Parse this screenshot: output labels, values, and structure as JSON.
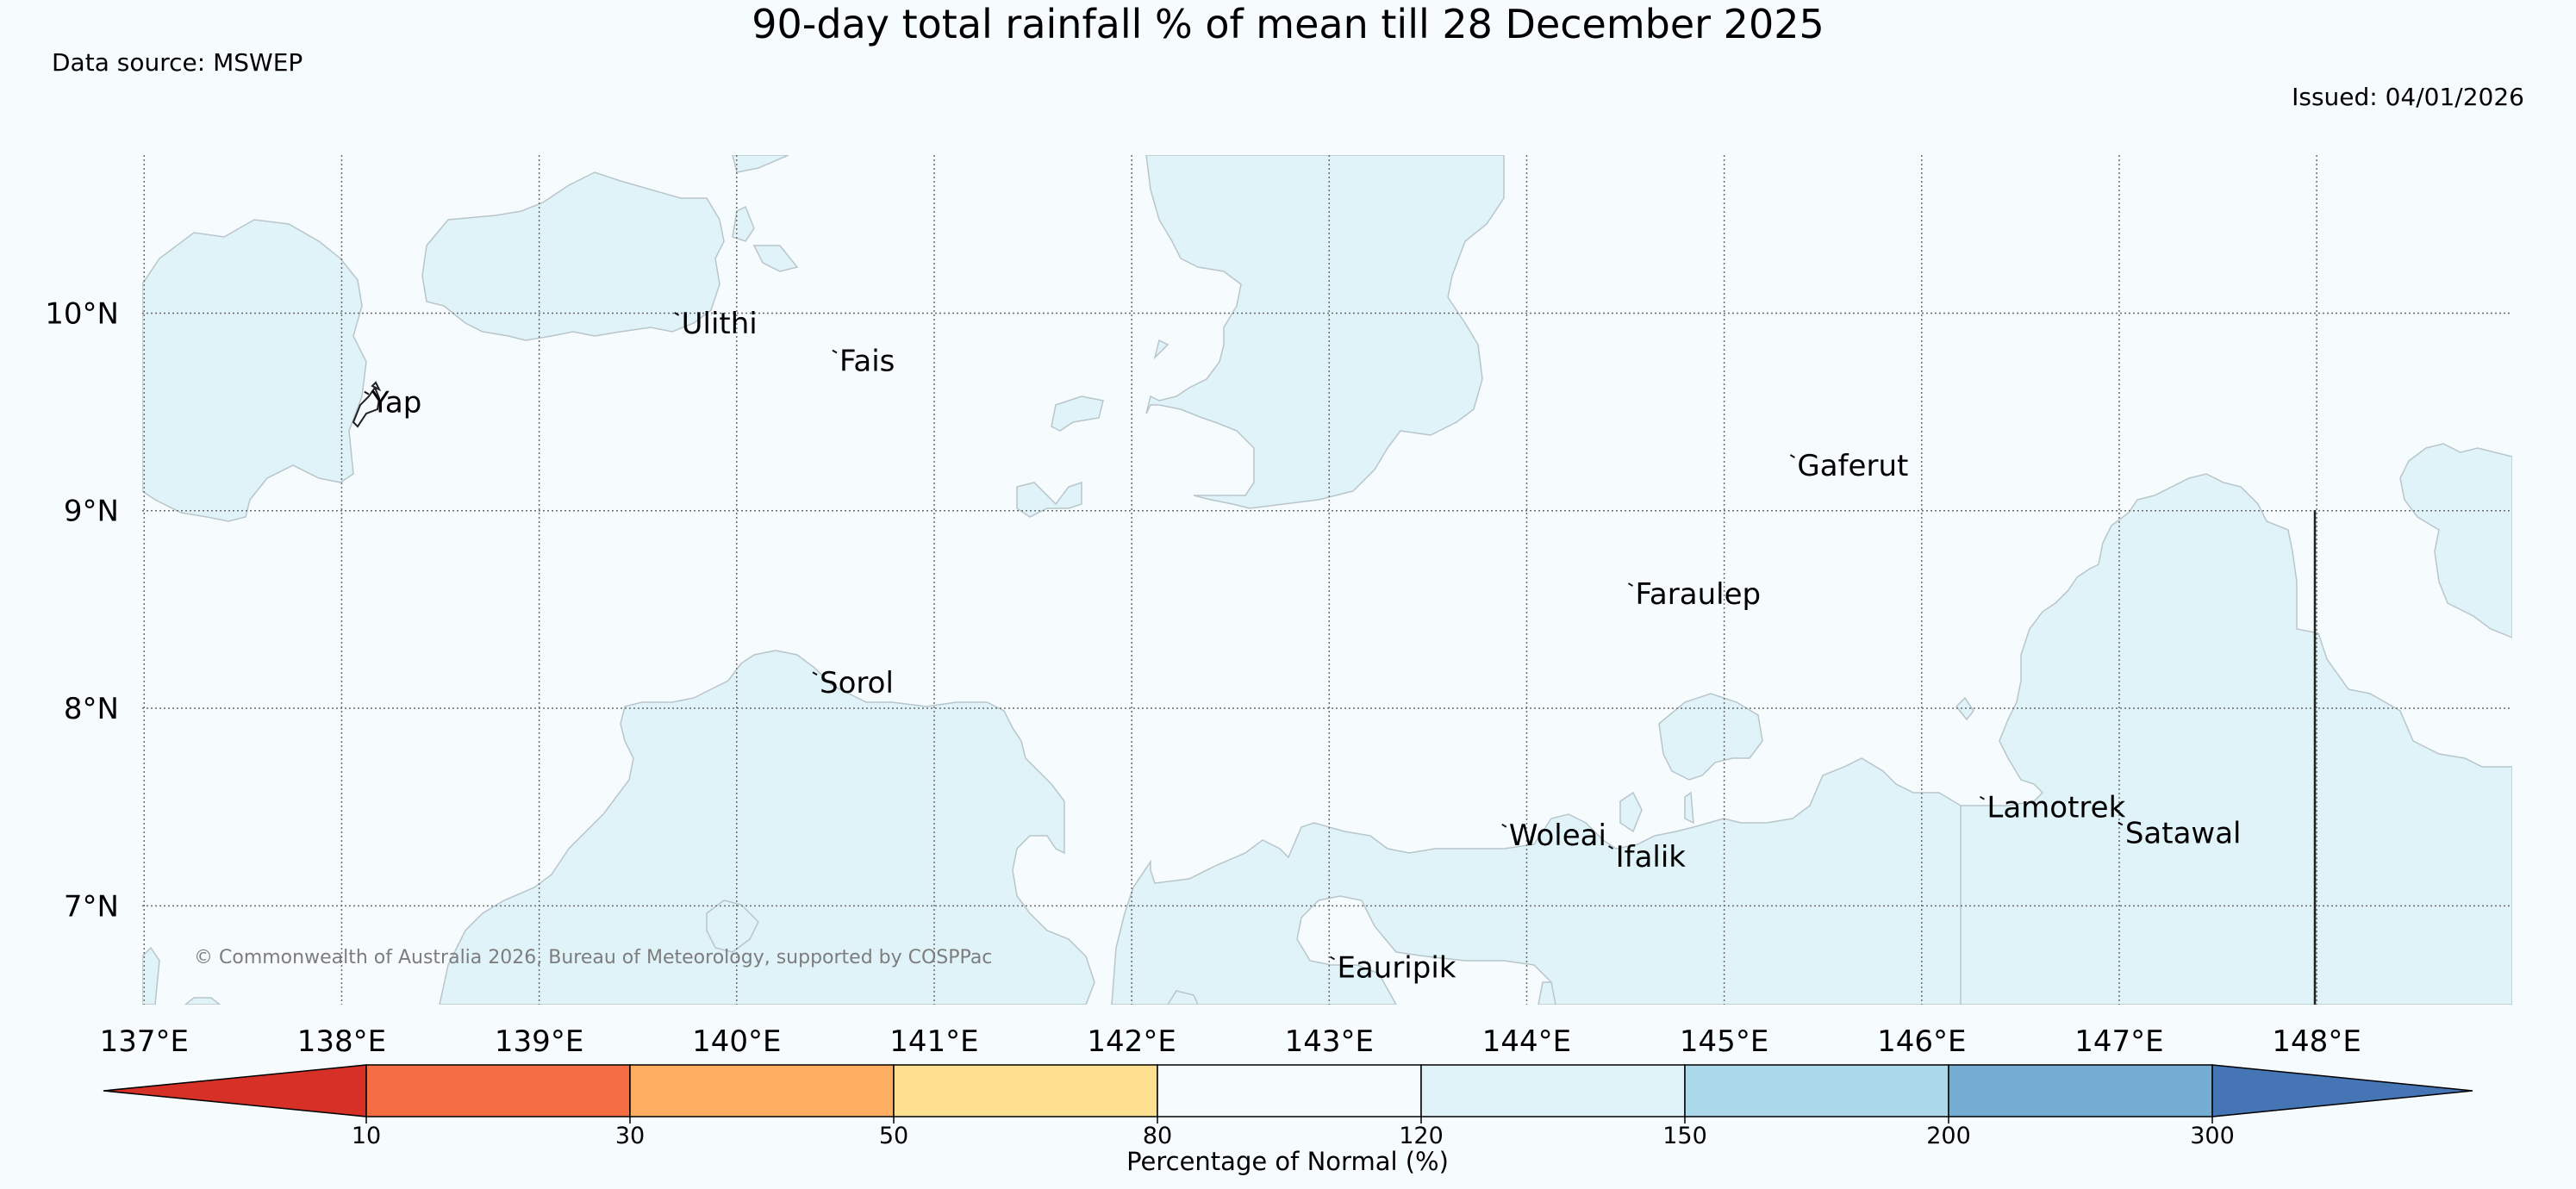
{
  "title": "90-day total rainfall % of mean till 28 December 2025",
  "data_source": "Data source: MSWEP",
  "issued": "Issued: 04/01/2026",
  "copyright": "© Commonwealth of Australia 2026, Bureau of Meteorology, supported by COSPPac",
  "map": {
    "lon_range": [
      136.99,
      148.99
    ],
    "lat_range": [
      6.5,
      10.8
    ],
    "grid": true,
    "lat_ticks": [
      {
        "value": 10,
        "label": "10°N"
      },
      {
        "value": 9,
        "label": "9°N"
      },
      {
        "value": 8,
        "label": "8°N"
      },
      {
        "value": 7,
        "label": "7°N"
      }
    ],
    "lon_ticks": [
      {
        "value": 137,
        "label": "137°E"
      },
      {
        "value": 138,
        "label": "138°E"
      },
      {
        "value": 139,
        "label": "139°E"
      },
      {
        "value": 140,
        "label": "140°E"
      },
      {
        "value": 141,
        "label": "141°E"
      },
      {
        "value": 142,
        "label": "142°E"
      },
      {
        "value": 143,
        "label": "143°E"
      },
      {
        "value": 144,
        "label": "144°E"
      },
      {
        "value": 145,
        "label": "145°E"
      },
      {
        "value": 146,
        "label": "146°E"
      },
      {
        "value": 147,
        "label": "147°E"
      },
      {
        "value": 148,
        "label": "148°E"
      }
    ],
    "places": [
      {
        "name": "Yap",
        "lon": 138.15,
        "lat": 9.55
      },
      {
        "name": "Ulithi",
        "lon": 139.72,
        "lat": 9.95
      },
      {
        "name": "Fais",
        "lon": 140.52,
        "lat": 9.76
      },
      {
        "name": "Sorol",
        "lon": 140.42,
        "lat": 8.13
      },
      {
        "name": "Gaferut",
        "lon": 145.37,
        "lat": 9.23
      },
      {
        "name": "Faraulep",
        "lon": 144.55,
        "lat": 8.58
      },
      {
        "name": "Woleai",
        "lon": 143.91,
        "lat": 7.36
      },
      {
        "name": "Ifalik",
        "lon": 144.45,
        "lat": 7.25
      },
      {
        "name": "Lamotrek",
        "lon": 146.33,
        "lat": 7.5
      },
      {
        "name": "Satawal",
        "lon": 147.03,
        "lat": 7.37
      },
      {
        "name": "Eauripik",
        "lon": 143.04,
        "lat": 6.69
      }
    ],
    "colors": {
      "background": "#f6fbfd",
      "wet_120_150": "#e0f3f8"
    }
  },
  "colorbar": {
    "title": "Percentage of Normal (%)",
    "ticks": [
      "10",
      "30",
      "50",
      "80",
      "120",
      "150",
      "200",
      "300"
    ],
    "colors": [
      "#d73027",
      "#f46d43",
      "#fdae61",
      "#fee090",
      "#f6fbfd",
      "#e0f3f8",
      "#abd9e9",
      "#74add1",
      "#4575b4"
    ]
  }
}
